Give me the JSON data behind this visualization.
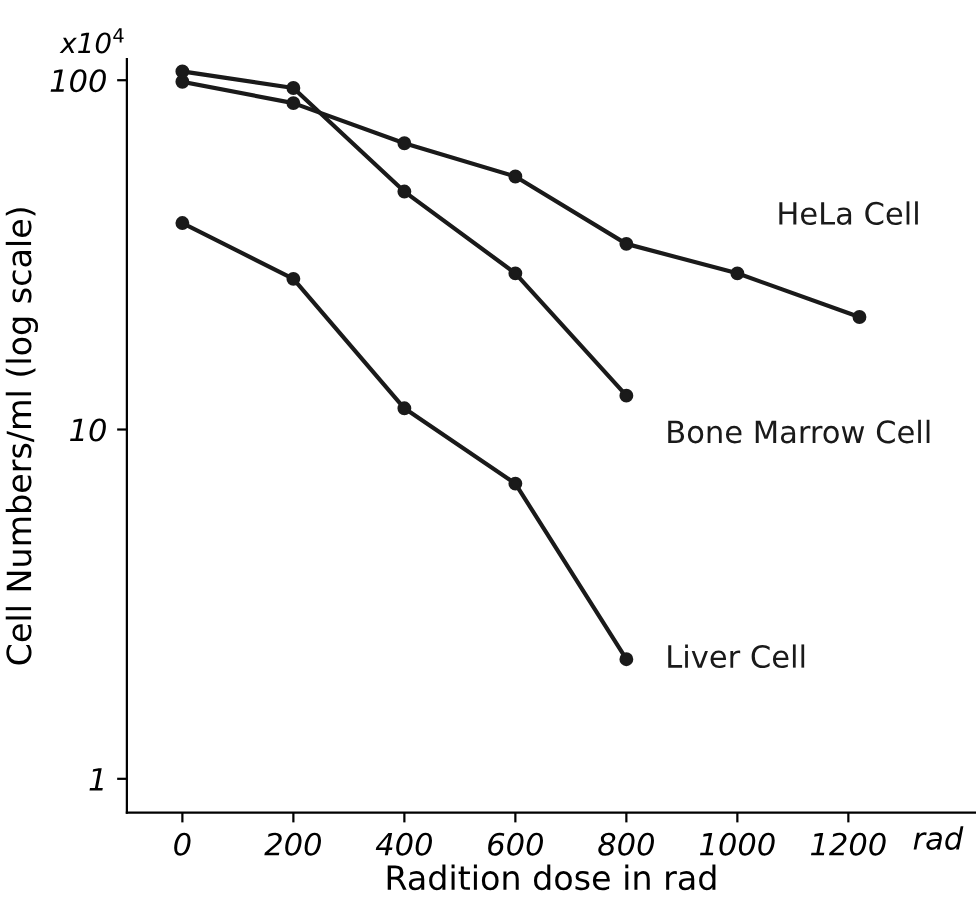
{
  "chart_data": {
    "type": "line",
    "xlabel": "Radition dose in rad",
    "ylabel": "Cell Numbers/ml (log scale)",
    "annotations": [
      "x10$^{4}$",
      "rad"
    ],
    "log": "y",
    "grid": false,
    "legend": false,
    "marker": "circle",
    "line_style": "solid",
    "xlim": [
      -100,
      1430
    ],
    "xticks": [
      0,
      200,
      400,
      600,
      800,
      1000,
      1200
    ],
    "ylim": [
      0.8,
      115
    ],
    "yticks": [
      1,
      10,
      100
    ],
    "series": [
      {
        "name": "HeLa Cell",
        "color": "#1a1a1a",
        "x": [
          0,
          200,
          400,
          600,
          800,
          1000,
          1220
        ],
        "values": [
          99,
          86,
          66,
          53,
          34,
          28,
          21
        ]
      },
      {
        "name": "Bone Marrow Cell",
        "color": "#1a1a1a",
        "x": [
          0,
          200,
          400,
          600,
          800
        ],
        "values": [
          106,
          95,
          48,
          28,
          12.5
        ]
      },
      {
        "name": "Liver Cell",
        "color": "#1a1a1a",
        "x": [
          0,
          200,
          400,
          600,
          800
        ],
        "values": [
          39,
          27,
          11.5,
          7,
          2.2
        ]
      }
    ]
  }
}
